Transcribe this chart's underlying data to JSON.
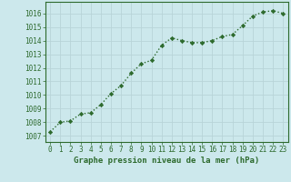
{
  "x": [
    0,
    1,
    2,
    3,
    4,
    5,
    6,
    7,
    8,
    9,
    10,
    11,
    12,
    13,
    14,
    15,
    16,
    17,
    18,
    19,
    20,
    21,
    22,
    23
  ],
  "y": [
    1007.3,
    1008.0,
    1008.1,
    1008.6,
    1008.7,
    1009.3,
    1010.1,
    1010.7,
    1011.6,
    1012.3,
    1012.55,
    1013.65,
    1014.2,
    1014.0,
    1013.85,
    1013.85,
    1014.0,
    1014.3,
    1014.45,
    1015.1,
    1015.8,
    1016.1,
    1016.2,
    1016.0
  ],
  "line_color": "#2d6a2d",
  "marker_color": "#2d6a2d",
  "bg_color": "#cce8ec",
  "grid_color": "#b8d4d8",
  "xlabel": "Graphe pression niveau de la mer (hPa)",
  "ylabel_ticks": [
    1007,
    1008,
    1009,
    1010,
    1011,
    1012,
    1013,
    1014,
    1015,
    1016
  ],
  "ylim": [
    1006.55,
    1016.85
  ],
  "xlim": [
    -0.5,
    23.5
  ],
  "xticks": [
    0,
    1,
    2,
    3,
    4,
    5,
    6,
    7,
    8,
    9,
    10,
    11,
    12,
    13,
    14,
    15,
    16,
    17,
    18,
    19,
    20,
    21,
    22,
    23
  ],
  "xtick_labels": [
    "0",
    "1",
    "2",
    "3",
    "4",
    "5",
    "6",
    "7",
    "8",
    "9",
    "10",
    "11",
    "12",
    "13",
    "14",
    "15",
    "16",
    "17",
    "18",
    "19",
    "20",
    "21",
    "22",
    "23"
  ],
  "xlabel_fontsize": 6.5,
  "tick_fontsize": 5.5,
  "line_width": 1.0,
  "marker_size": 2.2
}
